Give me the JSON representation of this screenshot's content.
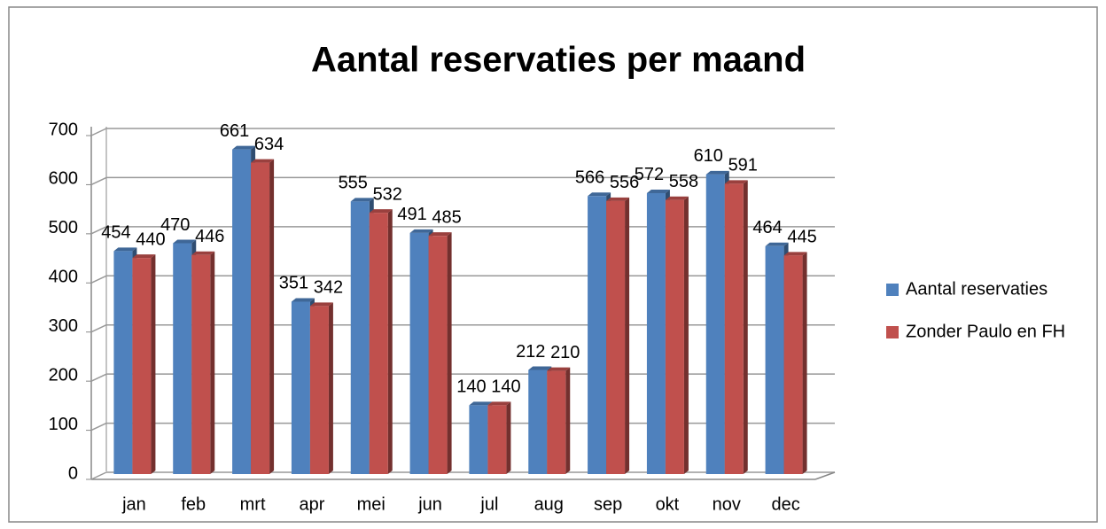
{
  "chart_data": {
    "type": "bar",
    "title": "Aantal reservaties per maand",
    "categories": [
      "jan",
      "feb",
      "mrt",
      "apr",
      "mei",
      "jun",
      "jul",
      "aug",
      "sep",
      "okt",
      "nov",
      "dec"
    ],
    "series": [
      {
        "name": "Aantal reservaties",
        "color": "#4f81bd",
        "values": [
          454,
          470,
          661,
          351,
          555,
          491,
          140,
          212,
          566,
          572,
          610,
          464
        ]
      },
      {
        "name": "Zonder Paulo en FH",
        "color": "#c0504d",
        "values": [
          440,
          446,
          634,
          342,
          532,
          485,
          140,
          210,
          556,
          558,
          591,
          445
        ]
      }
    ],
    "ylim": [
      0,
      700
    ],
    "yticks": [
      0,
      100,
      200,
      300,
      400,
      500,
      600,
      700
    ],
    "grid": true,
    "legend": "right"
  }
}
